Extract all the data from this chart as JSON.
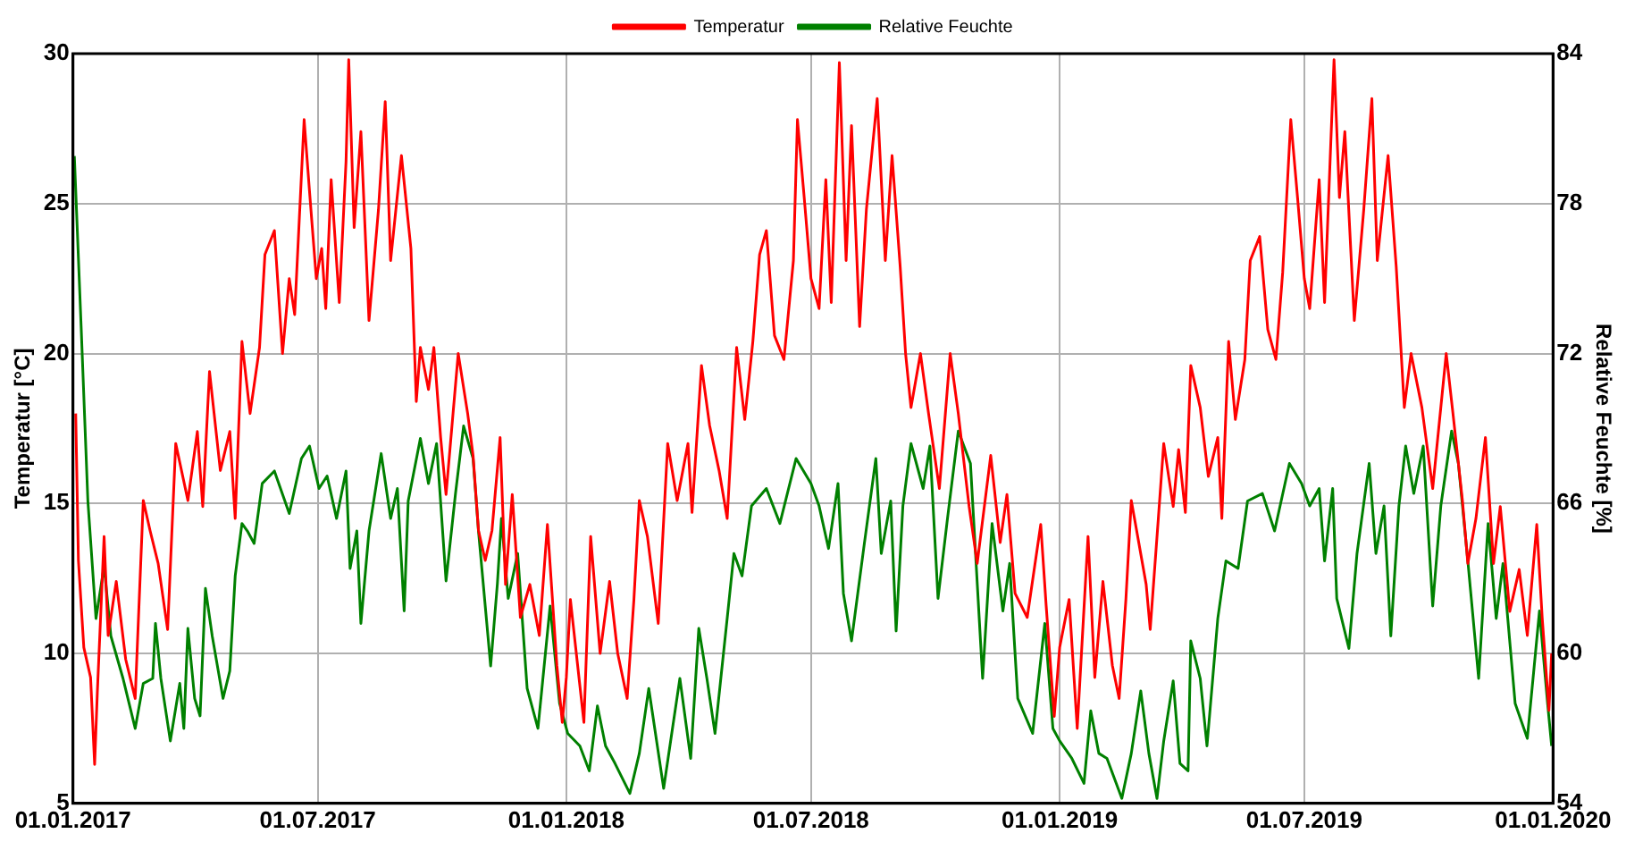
{
  "chart_data": {
    "type": "line",
    "xlim": [
      "2017-01-01",
      "2020-01-01"
    ],
    "xticks": [
      {
        "value": "2017-01-01",
        "label": "01.01.2017"
      },
      {
        "value": "2017-07-01",
        "label": "01.07.2017"
      },
      {
        "value": "2018-01-01",
        "label": "01.01.2018"
      },
      {
        "value": "2018-07-01",
        "label": "01.07.2018"
      },
      {
        "value": "2019-01-01",
        "label": "01.01.2019"
      },
      {
        "value": "2019-07-01",
        "label": "01.07.2019"
      },
      {
        "value": "2020-01-01",
        "label": "01.01.2020"
      }
    ],
    "ylabel": "Temperatur [°C]",
    "y2label": "Relative Feuchte [%]",
    "ylim": [
      5,
      30
    ],
    "yticks": [
      5,
      10,
      15,
      20,
      25,
      30
    ],
    "y2lim": [
      54,
      84
    ],
    "y2ticks": [
      54,
      60,
      66,
      72,
      78,
      84
    ],
    "grid": true,
    "legend": "top",
    "marker": "none",
    "series": [
      {
        "name": "Temperatur",
        "color": "#ff0000",
        "x": [
          "2017-01-03",
          "2017-01-05",
          "2017-01-09",
          "2017-01-14",
          "2017-01-17",
          "2017-01-19",
          "2017-01-24",
          "2017-01-27",
          "2017-02-02",
          "2017-02-09",
          "2017-02-16",
          "2017-02-22",
          "2017-02-27",
          "2017-03-05",
          "2017-03-12",
          "2017-03-18",
          "2017-03-27",
          "2017-04-03",
          "2017-04-07",
          "2017-04-12",
          "2017-04-20",
          "2017-04-27",
          "2017-05-01",
          "2017-05-06",
          "2017-05-12",
          "2017-05-19",
          "2017-05-23",
          "2017-05-30",
          "2017-06-05",
          "2017-06-10",
          "2017-06-14",
          "2017-06-21",
          "2017-06-25",
          "2017-06-30",
          "2017-07-04",
          "2017-07-07",
          "2017-07-11",
          "2017-07-17",
          "2017-07-22",
          "2017-07-24",
          "2017-07-28",
          "2017-08-02",
          "2017-08-08",
          "2017-08-15",
          "2017-08-20",
          "2017-08-24",
          "2017-09-01",
          "2017-09-08",
          "2017-09-12",
          "2017-09-15",
          "2017-09-21",
          "2017-09-25",
          "2017-09-30",
          "2017-10-04",
          "2017-10-13",
          "2017-10-20",
          "2017-10-24",
          "2017-10-28",
          "2017-11-02",
          "2017-11-07",
          "2017-11-13",
          "2017-11-17",
          "2017-11-22",
          "2017-11-28",
          "2017-12-05",
          "2017-12-12",
          "2017-12-18",
          "2017-12-25",
          "2017-12-29",
          "2018-01-01",
          "2018-01-04",
          "2018-01-14",
          "2018-01-19",
          "2018-01-26",
          "2018-02-02",
          "2018-02-08",
          "2018-02-15",
          "2018-02-20",
          "2018-02-24",
          "2018-03-02",
          "2018-03-10",
          "2018-03-17",
          "2018-03-24",
          "2018-04-01",
          "2018-04-04",
          "2018-04-11",
          "2018-04-17",
          "2018-04-24",
          "2018-04-30",
          "2018-05-07",
          "2018-05-13",
          "2018-05-19",
          "2018-05-24",
          "2018-05-29",
          "2018-06-04",
          "2018-06-11",
          "2018-06-18",
          "2018-06-21",
          "2018-06-26",
          "2018-07-01",
          "2018-07-07",
          "2018-07-12",
          "2018-07-16",
          "2018-07-22",
          "2018-07-27",
          "2018-07-31",
          "2018-08-06",
          "2018-08-11",
          "2018-08-19",
          "2018-08-25",
          "2018-08-30",
          "2018-09-05",
          "2018-09-09",
          "2018-09-13",
          "2018-09-20",
          "2018-09-26",
          "2018-10-04",
          "2018-10-12",
          "2018-10-18",
          "2018-10-26",
          "2018-11-01",
          "2018-11-11",
          "2018-11-18",
          "2018-11-23",
          "2018-11-29",
          "2018-12-08",
          "2018-12-18",
          "2018-12-22",
          "2018-12-28",
          "2019-01-01",
          "2019-01-08",
          "2019-01-14",
          "2019-01-22",
          "2019-01-27",
          "2019-02-02",
          "2019-02-09",
          "2019-02-14",
          "2019-02-19",
          "2019-02-23",
          "2019-03-06",
          "2019-03-09",
          "2019-03-15",
          "2019-03-19",
          "2019-03-26",
          "2019-03-30",
          "2019-04-04",
          "2019-04-08",
          "2019-04-15",
          "2019-04-21",
          "2019-04-28",
          "2019-05-01",
          "2019-05-06",
          "2019-05-11",
          "2019-05-18",
          "2019-05-22",
          "2019-05-29",
          "2019-06-04",
          "2019-06-10",
          "2019-06-15",
          "2019-06-21",
          "2019-06-26",
          "2019-07-01",
          "2019-07-05",
          "2019-07-12",
          "2019-07-16",
          "2019-07-23",
          "2019-07-27",
          "2019-07-31",
          "2019-08-07",
          "2019-08-14",
          "2019-08-20",
          "2019-08-24",
          "2019-09-01",
          "2019-09-07",
          "2019-09-13",
          "2019-09-18",
          "2019-09-26",
          "2019-10-04",
          "2019-10-14",
          "2019-10-19",
          "2019-10-26",
          "2019-10-30",
          "2019-11-05",
          "2019-11-12",
          "2019-11-18",
          "2019-11-23",
          "2019-11-30",
          "2019-12-07",
          "2019-12-13",
          "2019-12-20",
          "2019-12-24",
          "2019-12-29",
          "2019-12-31"
        ],
        "values": [
          18,
          13.1,
          10.2,
          9.2,
          6.3,
          8.7,
          13.9,
          10.6,
          12.4,
          9.8,
          8.5,
          15.1,
          14.1,
          13,
          10.8,
          17,
          15.1,
          17.4,
          14.9,
          19.4,
          16.1,
          17.4,
          14.5,
          20.4,
          18,
          20.2,
          23.3,
          24.1,
          20,
          22.5,
          21.3,
          27.8,
          25.4,
          22.5,
          23.5,
          21.5,
          25.8,
          21.7,
          26.4,
          29.8,
          24.2,
          27.4,
          21.1,
          24.8,
          28.4,
          23.1,
          26.6,
          23.5,
          18.4,
          20.2,
          18.8,
          20.2,
          17.2,
          15.3,
          20,
          18,
          16.6,
          14.1,
          13.1,
          14.1,
          17.2,
          12.3,
          15.3,
          11.2,
          12.3,
          10.6,
          14.3,
          9.6,
          7.7,
          9.2,
          11.8,
          7.7,
          13.9,
          10,
          12.4,
          10,
          8.5,
          11.8,
          15.1,
          13.9,
          11,
          17,
          15.1,
          17,
          14.7,
          19.6,
          17.6,
          16.1,
          14.5,
          20.2,
          17.8,
          20.4,
          23.3,
          24.1,
          20.6,
          19.8,
          23.1,
          27.8,
          25.2,
          22.5,
          21.5,
          25.8,
          21.7,
          29.7,
          23.1,
          27.6,
          20.9,
          24.8,
          28.5,
          23.1,
          26.6,
          22.9,
          20,
          18.2,
          20,
          18,
          15.5,
          20,
          18,
          14.9,
          13,
          16.6,
          13.7,
          15.3,
          12,
          11.2,
          14.3,
          11.6,
          7.9,
          10.2,
          11.8,
          7.5,
          13.9,
          9.2,
          12.4,
          9.6,
          8.5,
          11.8,
          15.1,
          12.3,
          10.8,
          14.5,
          17,
          14.9,
          16.8,
          14.7,
          19.6,
          18.2,
          15.9,
          17.2,
          14.5,
          20.4,
          17.8,
          19.8,
          23.1,
          23.9,
          20.8,
          19.8,
          22.7,
          27.8,
          25.2,
          22.5,
          21.5,
          25.8,
          21.7,
          29.8,
          25.2,
          27.4,
          21.1,
          24.8,
          28.5,
          23.1,
          26.6,
          22.9,
          18.2,
          20,
          18.2,
          15.5,
          20,
          18,
          15.1,
          13,
          14.5,
          17.2,
          13,
          14.9,
          11.4,
          12.8,
          10.6,
          14.3,
          11.2,
          8.1,
          10
        ]
      },
      {
        "name": "Relative Feuchte",
        "color": "#008000",
        "axis": "y2",
        "x": [
          "2017-01-02",
          "2017-01-07",
          "2017-01-12",
          "2017-01-18",
          "2017-01-24",
          "2017-01-29",
          "2017-02-07",
          "2017-02-16",
          "2017-02-22",
          "2017-03-01",
          "2017-03-03",
          "2017-03-07",
          "2017-03-14",
          "2017-03-21",
          "2017-03-24",
          "2017-03-27",
          "2017-04-01",
          "2017-04-05",
          "2017-04-09",
          "2017-04-14",
          "2017-04-22",
          "2017-04-27",
          "2017-05-01",
          "2017-05-06",
          "2017-05-10",
          "2017-05-15",
          "2017-05-21",
          "2017-05-30",
          "2017-06-10",
          "2017-06-19",
          "2017-06-25",
          "2017-07-02",
          "2017-07-08",
          "2017-07-15",
          "2017-07-22",
          "2017-07-25",
          "2017-07-30",
          "2017-08-02",
          "2017-08-08",
          "2017-08-17",
          "2017-08-24",
          "2017-08-29",
          "2017-09-03",
          "2017-09-06",
          "2017-09-15",
          "2017-09-21",
          "2017-09-27",
          "2017-10-04",
          "2017-10-11",
          "2017-10-17",
          "2017-10-24",
          "2017-10-28",
          "2017-11-06",
          "2017-11-11",
          "2017-11-14",
          "2017-11-19",
          "2017-11-26",
          "2017-12-03",
          "2017-12-11",
          "2017-12-20",
          "2017-12-27",
          "2018-01-02",
          "2018-01-11",
          "2018-01-18",
          "2018-01-24",
          "2018-01-30",
          "2018-02-06",
          "2018-02-17",
          "2018-02-24",
          "2018-03-03",
          "2018-03-14",
          "2018-03-20",
          "2018-03-26",
          "2018-04-03",
          "2018-04-09",
          "2018-04-15",
          "2018-04-21",
          "2018-04-30",
          "2018-05-05",
          "2018-05-11",
          "2018-05-18",
          "2018-05-29",
          "2018-06-08",
          "2018-06-20",
          "2018-07-01",
          "2018-07-07",
          "2018-07-14",
          "2018-07-21",
          "2018-07-25",
          "2018-07-31",
          "2018-08-09",
          "2018-08-18",
          "2018-08-22",
          "2018-08-29",
          "2018-09-02",
          "2018-09-07",
          "2018-09-13",
          "2018-09-22",
          "2018-09-27",
          "2018-10-03",
          "2018-10-10",
          "2018-10-18",
          "2018-10-27",
          "2018-11-05",
          "2018-11-12",
          "2018-11-20",
          "2018-11-25",
          "2018-12-01",
          "2018-12-12",
          "2018-12-21",
          "2018-12-27",
          "2019-01-01",
          "2019-01-10",
          "2019-01-19",
          "2019-01-24",
          "2019-01-30",
          "2019-02-05",
          "2019-02-16",
          "2019-02-23",
          "2019-03-02",
          "2019-03-08",
          "2019-03-14",
          "2019-03-19",
          "2019-03-26",
          "2019-03-31",
          "2019-04-06",
          "2019-04-08",
          "2019-04-15",
          "2019-04-20",
          "2019-04-28",
          "2019-05-04",
          "2019-05-13",
          "2019-05-20",
          "2019-05-31",
          "2019-06-09",
          "2019-06-20",
          "2019-06-29",
          "2019-07-05",
          "2019-07-12",
          "2019-07-16",
          "2019-07-22",
          "2019-07-25",
          "2019-08-03",
          "2019-08-09",
          "2019-08-18",
          "2019-08-23",
          "2019-08-29",
          "2019-09-03",
          "2019-09-09",
          "2019-09-14",
          "2019-09-20",
          "2019-09-27",
          "2019-10-04",
          "2019-10-10",
          "2019-10-18",
          "2019-10-23",
          "2019-10-30",
          "2019-11-07",
          "2019-11-14",
          "2019-11-20",
          "2019-11-25",
          "2019-12-04",
          "2019-12-13",
          "2019-12-22",
          "2019-12-28",
          "2019-12-31"
        ],
        "values": [
          79.9,
          73.1,
          66.1,
          61.4,
          63.5,
          60.7,
          59,
          57,
          58.8,
          59,
          61.2,
          59,
          56.5,
          58.8,
          57,
          61,
          58.2,
          57.5,
          62.6,
          60.7,
          58.2,
          59.3,
          63.1,
          65.2,
          64.9,
          64.4,
          66.8,
          67.3,
          65.6,
          67.8,
          68.3,
          66.6,
          67.1,
          65.4,
          67.3,
          63.4,
          64.9,
          61.2,
          64.9,
          68,
          65.4,
          66.6,
          61.7,
          66.1,
          68.6,
          66.8,
          68.4,
          62.9,
          66.4,
          69.1,
          67.8,
          64.9,
          59.5,
          62.8,
          65.4,
          62.2,
          64,
          58.6,
          57,
          61.9,
          58,
          56.8,
          56.3,
          55.3,
          57.9,
          56.3,
          55.6,
          54.4,
          56,
          58.6,
          54.6,
          56.8,
          59,
          55.8,
          61,
          59,
          56.8,
          61.4,
          64,
          63.1,
          65.9,
          66.6,
          65.2,
          67.8,
          66.8,
          65.9,
          64.2,
          66.8,
          62.4,
          60.5,
          64.2,
          67.8,
          64,
          66.1,
          60.9,
          65.9,
          68.4,
          66.6,
          68.3,
          62.2,
          65.4,
          68.9,
          67.6,
          59,
          65.2,
          61.7,
          63.6,
          58.2,
          56.8,
          61.2,
          57,
          56.5,
          55.8,
          54.8,
          57.7,
          56,
          55.8,
          54.2,
          56,
          58.5,
          56,
          54.2,
          56.5,
          58.9,
          55.6,
          55.3,
          60.5,
          59,
          56.3,
          61.4,
          63.7,
          63.4,
          66.1,
          66.4,
          64.9,
          67.6,
          66.8,
          65.9,
          66.6,
          63.7,
          66.6,
          62.2,
          60.2,
          64,
          67.6,
          64,
          65.9,
          60.7,
          65.9,
          68.3,
          66.4,
          68.3,
          61.9,
          65.9,
          68.9,
          67.6,
          63.7,
          59,
          65.2,
          61.4,
          63.6,
          58,
          56.6,
          61.7,
          58,
          56.3
        ]
      }
    ]
  }
}
